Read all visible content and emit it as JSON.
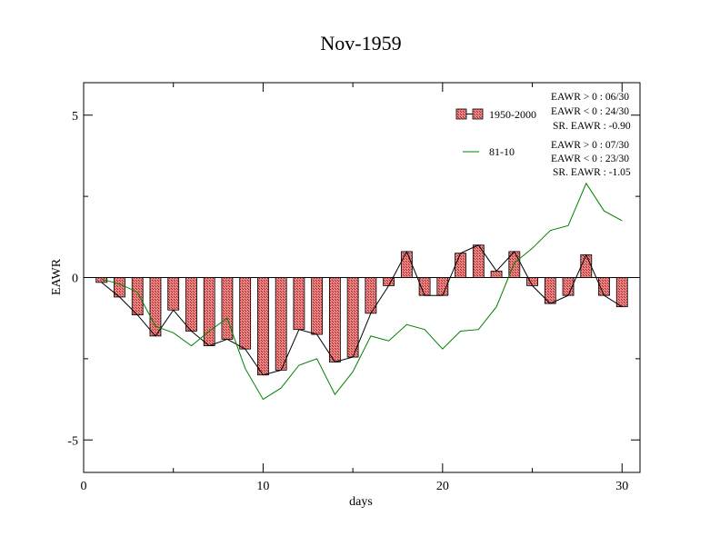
{
  "chart_data": {
    "type": "bar",
    "title": "Nov-1959",
    "xlabel": "days",
    "ylabel": "EAWR",
    "xlim": [
      0,
      31
    ],
    "ylim": [
      -6,
      6
    ],
    "xticks": [
      "0",
      "10",
      "20",
      "30"
    ],
    "xtick_values": [
      0,
      10,
      20,
      30
    ],
    "yticks": [
      "5",
      "0",
      "-5"
    ],
    "ytick_values": [
      5,
      0,
      -5
    ],
    "x": [
      1,
      2,
      3,
      4,
      5,
      6,
      7,
      8,
      9,
      10,
      11,
      12,
      13,
      14,
      15,
      16,
      17,
      18,
      19,
      20,
      21,
      22,
      23,
      24,
      25,
      26,
      27,
      28,
      29,
      30
    ],
    "series": [
      {
        "name": "1950-2000",
        "style": "bar+line",
        "bar_color": "#f08080",
        "line_color": "#000000",
        "values": [
          -0.15,
          -0.6,
          -1.15,
          -1.8,
          -1.0,
          -1.65,
          -2.1,
          -1.9,
          -2.2,
          -3.0,
          -2.85,
          -1.6,
          -1.75,
          -2.6,
          -2.45,
          -1.1,
          -0.25,
          0.8,
          -0.55,
          -0.55,
          0.75,
          1.0,
          0.2,
          0.8,
          -0.25,
          -0.8,
          -0.55,
          0.7,
          -0.55,
          -0.9
        ]
      },
      {
        "name": "81-10",
        "style": "line",
        "line_color": "#008000",
        "values": [
          -0.05,
          -0.2,
          -0.45,
          -1.5,
          -1.7,
          -2.1,
          -1.65,
          -1.25,
          -2.8,
          -3.75,
          -3.4,
          -2.7,
          -2.5,
          -3.6,
          -2.9,
          -1.8,
          -1.95,
          -1.45,
          -1.6,
          -2.2,
          -1.65,
          -1.6,
          -0.9,
          0.45,
          0.9,
          1.45,
          1.6,
          2.9,
          2.05,
          1.75
        ]
      }
    ],
    "legend_placement": "top-right",
    "annotations": {
      "s1": [
        "EAWR > 0 : 06/30",
        "EAWR < 0 : 24/30",
        "SR. EAWR : -0.90"
      ],
      "s2": [
        "EAWR > 0 : 07/30",
        "EAWR < 0 : 23/30",
        "SR. EAWR : -1.05"
      ]
    },
    "grid": false
  }
}
